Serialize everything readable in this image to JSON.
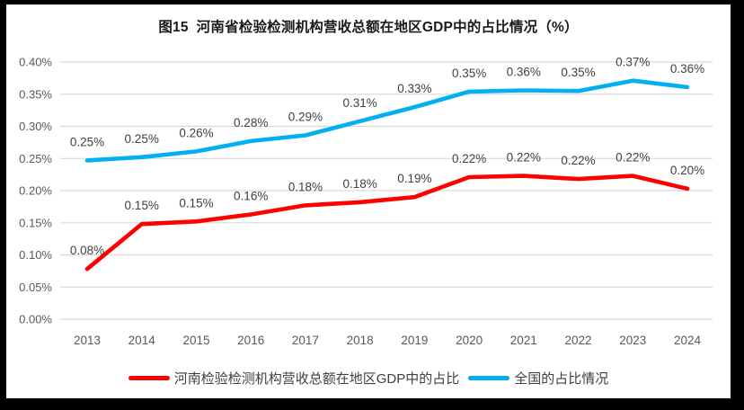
{
  "window": {
    "background_color": "#000000",
    "panel_color": "#ffffff"
  },
  "colors": {
    "gridline": "#d9d9d9",
    "tick_label": "#595959",
    "data_label": "#404040",
    "title_text": "#1a1a1a",
    "legend_text": "#3f3f3f",
    "series_henan": "#fe0000",
    "series_national": "#00b0f0"
  },
  "chart_data": {
    "type": "line",
    "title": "图15  河南省检验检测机构营收总额在地区GDP中的占比情况（%）",
    "xlabel": "",
    "ylabel": "",
    "categories": [
      "2013",
      "2014",
      "2015",
      "2016",
      "2017",
      "2018",
      "2019",
      "2020",
      "2021",
      "2022",
      "2023",
      "2024"
    ],
    "series": [
      {
        "name": "河南检验检测机构营收总额在地区GDP中的占比",
        "color": "#fe0000",
        "values": [
          0.08,
          0.15,
          0.15,
          0.16,
          0.18,
          0.18,
          0.19,
          0.22,
          0.22,
          0.22,
          0.22,
          0.2
        ],
        "labels": [
          "0.08%",
          "0.15%",
          "0.15%",
          "0.16%",
          "0.18%",
          "0.18%",
          "0.19%",
          "0.22%",
          "0.22%",
          "0.22%",
          "0.22%",
          "0.20%"
        ],
        "plot_values": [
          0.078,
          0.148,
          0.152,
          0.163,
          0.177,
          0.182,
          0.19,
          0.221,
          0.223,
          0.218,
          0.223,
          0.203
        ]
      },
      {
        "name": "全国的占比情况",
        "color": "#00b0f0",
        "values": [
          0.25,
          0.25,
          0.26,
          0.28,
          0.29,
          0.31,
          0.33,
          0.35,
          0.36,
          0.35,
          0.37,
          0.36
        ],
        "labels": [
          "0.25%",
          "0.25%",
          "0.26%",
          "0.28%",
          "0.29%",
          "0.31%",
          "0.33%",
          "0.35%",
          "0.36%",
          "0.35%",
          "0.37%",
          "0.36%"
        ],
        "plot_values": [
          0.247,
          0.252,
          0.261,
          0.277,
          0.286,
          0.308,
          0.33,
          0.354,
          0.356,
          0.355,
          0.371,
          0.361
        ]
      }
    ],
    "ylim": [
      0,
      0.4
    ],
    "y_tick_step": 0.05,
    "y_tick_labels": [
      "0.00%",
      "0.05%",
      "0.10%",
      "0.15%",
      "0.20%",
      "0.25%",
      "0.30%",
      "0.35%",
      "0.40%"
    ],
    "grid": true,
    "legend_position": "bottom",
    "value_suffix": "%"
  }
}
